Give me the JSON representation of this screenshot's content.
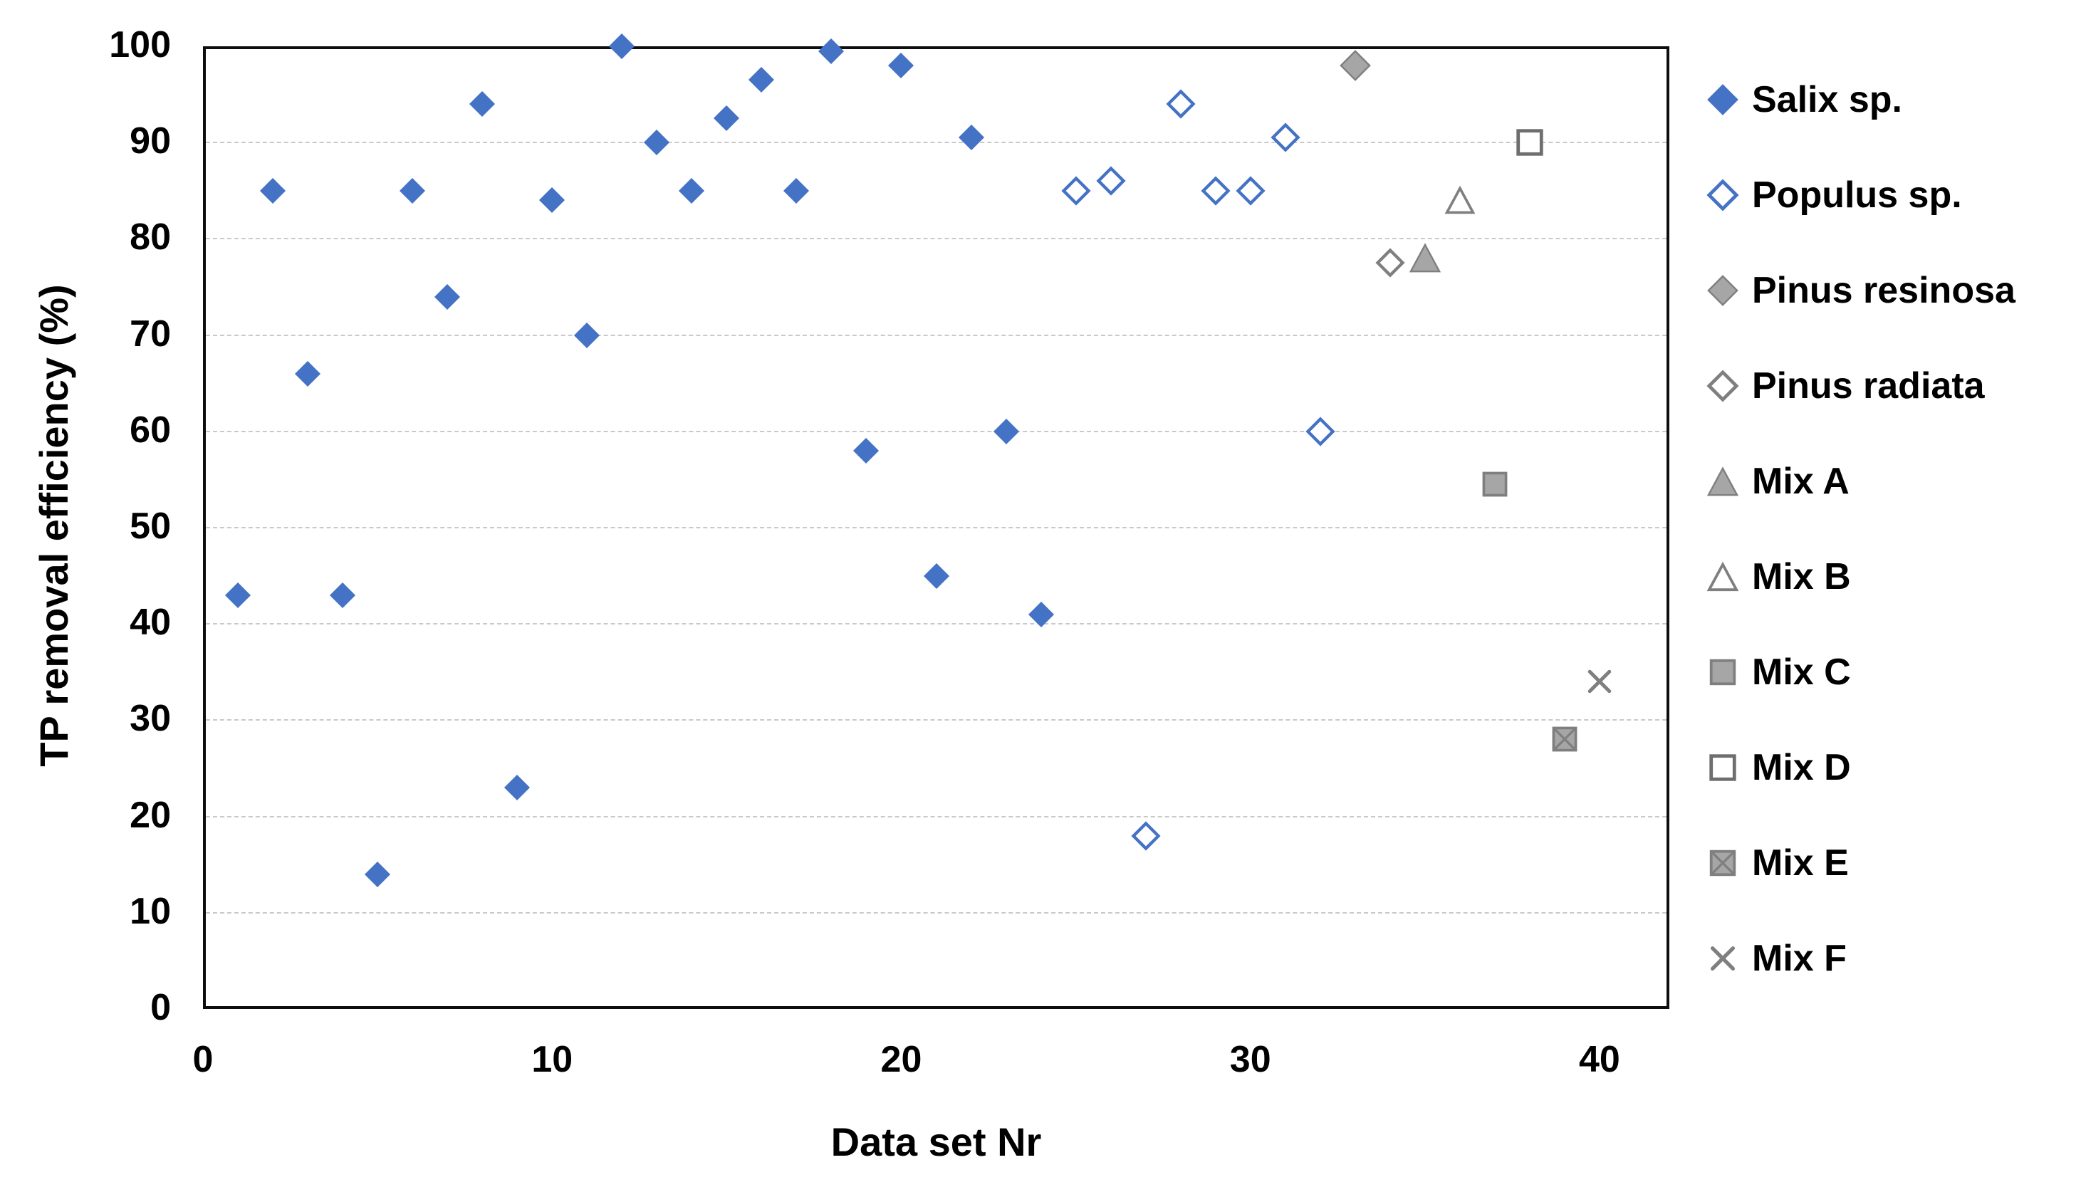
{
  "colors": {
    "accent_blue": "#4472c4",
    "marker_gray_fill": "#a6a6a6",
    "marker_gray_stroke": "#7f7f7f",
    "grid": "#c9c9c9",
    "axis": "#0e0e0e",
    "text": "#000000",
    "background": "#ffffff"
  },
  "chart_data": {
    "type": "scatter",
    "title": "",
    "xlabel": "Data set Nr",
    "ylabel": "TP removal efficiency (%)",
    "xlim": [
      0,
      42
    ],
    "ylim": [
      0,
      100
    ],
    "xticks": [
      0,
      10,
      20,
      30,
      40
    ],
    "yticks": [
      0,
      10,
      20,
      30,
      40,
      50,
      60,
      70,
      80,
      90,
      100
    ],
    "grid": "horizontal-dashed",
    "legend_position": "right",
    "series": [
      {
        "name": "Salix sp.",
        "marker": "diamond-filled",
        "fill": "#4472c4",
        "stroke": "#4472c4",
        "size": 38,
        "points": [
          [
            1,
            43
          ],
          [
            2,
            85
          ],
          [
            3,
            66
          ],
          [
            4,
            43
          ],
          [
            5,
            14
          ],
          [
            6,
            85
          ],
          [
            7,
            74
          ],
          [
            8,
            94
          ],
          [
            9,
            23
          ],
          [
            10,
            84
          ],
          [
            11,
            70
          ],
          [
            12,
            100
          ],
          [
            13,
            90
          ],
          [
            14,
            85
          ],
          [
            15,
            92.5
          ],
          [
            16,
            96.5
          ],
          [
            17,
            85
          ],
          [
            18,
            99.5
          ],
          [
            19,
            58
          ],
          [
            20,
            98
          ],
          [
            21,
            45
          ],
          [
            22,
            90.5
          ],
          [
            23,
            60
          ],
          [
            24,
            41
          ]
        ]
      },
      {
        "name": "Populus sp.",
        "marker": "diamond-open",
        "fill": "#ffffff",
        "stroke": "#4472c4",
        "size": 42,
        "points": [
          [
            25,
            85
          ],
          [
            26,
            86
          ],
          [
            27,
            18
          ],
          [
            28,
            94
          ],
          [
            29,
            85
          ],
          [
            30,
            85
          ],
          [
            31,
            90.5
          ],
          [
            32,
            60
          ]
        ]
      },
      {
        "name": "Pinus resinosa",
        "marker": "diamond-filled",
        "fill": "#a6a6a6",
        "stroke": "#7f7f7f",
        "size": 46,
        "points": [
          [
            33,
            98
          ]
        ]
      },
      {
        "name": "Pinus radiata",
        "marker": "diamond-open",
        "fill": "#ffffff",
        "stroke": "#7f7f7f",
        "size": 42,
        "points": [
          [
            34,
            77.5
          ]
        ]
      },
      {
        "name": "Mix A",
        "marker": "triangle-filled",
        "fill": "#a6a6a6",
        "stroke": "#7f7f7f",
        "size": 46,
        "points": [
          [
            35,
            78
          ]
        ]
      },
      {
        "name": "Mix B",
        "marker": "triangle-open",
        "fill": "#ffffff",
        "stroke": "#7f7f7f",
        "size": 44,
        "points": [
          [
            36,
            84
          ]
        ]
      },
      {
        "name": "Mix C",
        "marker": "square-filled",
        "fill": "#a6a6a6",
        "stroke": "#7f7f7f",
        "size": 44,
        "points": [
          [
            37,
            54.5
          ]
        ]
      },
      {
        "name": "Mix D",
        "marker": "square-open",
        "fill": "#ffffff",
        "stroke": "#6e6e6e",
        "size": 46,
        "points": [
          [
            38,
            90
          ]
        ]
      },
      {
        "name": "Mix E",
        "marker": "square-x",
        "fill": "#a6a6a6",
        "stroke": "#7f7f7f",
        "size": 44,
        "points": [
          [
            39,
            28
          ]
        ]
      },
      {
        "name": "Mix F",
        "marker": "x",
        "fill": "none",
        "stroke": "#7f7f7f",
        "size": 44,
        "points": [
          [
            40,
            34
          ]
        ]
      }
    ]
  }
}
